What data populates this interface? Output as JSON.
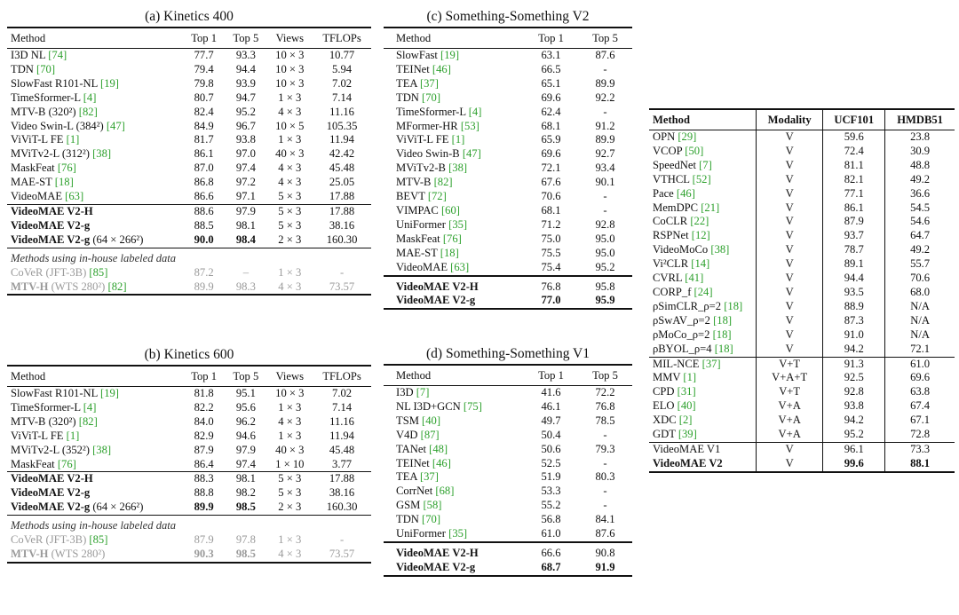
{
  "k400": {
    "caption": "(a) Kinetics 400",
    "headers": [
      "Method",
      "Top 1",
      "Top 5",
      "Views",
      "TFLOPs"
    ],
    "rows": [
      {
        "name": "I3D NL ",
        "cite": "[74]",
        "suffix": "",
        "t1": "77.7",
        "t5": "93.3",
        "views": "10 × 3",
        "tflops": "10.77"
      },
      {
        "name": "TDN ",
        "cite": "[70]",
        "suffix": "",
        "t1": "79.4",
        "t5": "94.4",
        "views": "10 × 3",
        "tflops": "5.94"
      },
      {
        "name": "SlowFast R101-NL ",
        "cite": "[19]",
        "suffix": "",
        "t1": "79.8",
        "t5": "93.9",
        "views": "10 × 3",
        "tflops": "7.02"
      },
      {
        "name": "TimeSformer-L ",
        "cite": "[4]",
        "suffix": "",
        "t1": "80.7",
        "t5": "94.7",
        "views": "1 × 3",
        "tflops": "7.14"
      },
      {
        "name": "MTV-B (320²) ",
        "cite": "[82]",
        "suffix": "",
        "t1": "82.4",
        "t5": "95.2",
        "views": "4 × 3",
        "tflops": "11.16"
      },
      {
        "name": "Video Swin-L (384²) ",
        "cite": "[47]",
        "suffix": "",
        "t1": "84.9",
        "t5": "96.7",
        "views": "10 × 5",
        "tflops": "105.35"
      },
      {
        "name": "ViViT-L FE ",
        "cite": "[1]",
        "suffix": "",
        "t1": "81.7",
        "t5": "93.8",
        "views": "1 × 3",
        "tflops": "11.94"
      },
      {
        "name": "MViTv2-L (312²) ",
        "cite": "[38]",
        "suffix": "",
        "t1": "86.1",
        "t5": "97.0",
        "views": "40 × 3",
        "tflops": "42.42"
      },
      {
        "name": "MaskFeat ",
        "cite": "[76]",
        "suffix": "",
        "t1": "87.0",
        "t5": "97.4",
        "views": "4 × 3",
        "tflops": "45.48"
      },
      {
        "name": "MAE-ST ",
        "cite": "[18]",
        "suffix": "",
        "t1": "86.8",
        "t5": "97.2",
        "views": "4 × 3",
        "tflops": "25.05"
      },
      {
        "name": "VideoMAE ",
        "cite": "[63]",
        "suffix": "",
        "t1": "86.6",
        "t5": "97.1",
        "views": "5 × 3",
        "tflops": "17.88"
      }
    ],
    "ours": [
      {
        "name": "VideoMAE V2-H",
        "suffix": "",
        "t1": "88.6",
        "t5": "97.9",
        "views": "5 × 3",
        "tflops": "17.88"
      },
      {
        "name": "VideoMAE V2-g",
        "suffix": "",
        "t1": "88.5",
        "t5": "98.1",
        "views": "5 × 3",
        "tflops": "38.16"
      },
      {
        "name": "VideoMAE V2-g",
        "suffix": " (64 × 266²)",
        "t1": "90.0",
        "t5": "98.4",
        "views": "2 × 3",
        "tflops": "160.30"
      }
    ],
    "inhouse_label": "Methods using in-house labeled data",
    "inhouse": [
      {
        "name": "CoVeR",
        "suffix": " (JFT-3B) ",
        "cite": "[85]",
        "t1": "87.2",
        "t5": "–",
        "views": "1 × 3",
        "tflops": "-"
      },
      {
        "name": "MTV-H",
        "suffix": " (WTS 280²) ",
        "cite": "[82]",
        "t1": "89.9",
        "t5": "98.3",
        "views": "4 × 3",
        "tflops": "73.57"
      }
    ]
  },
  "k600": {
    "caption": "(b) Kinetics 600",
    "headers": [
      "Method",
      "Top 1",
      "Top 5",
      "Views",
      "TFLOPs"
    ],
    "rows": [
      {
        "name": "SlowFast R101-NL ",
        "cite": "[19]",
        "t1": "81.8",
        "t5": "95.1",
        "views": "10 × 3",
        "tflops": "7.02"
      },
      {
        "name": "TimeSformer-L ",
        "cite": "[4]",
        "t1": "82.2",
        "t5": "95.6",
        "views": "1 × 3",
        "tflops": "7.14"
      },
      {
        "name": "MTV-B (320²) ",
        "cite": "[82]",
        "t1": "84.0",
        "t5": "96.2",
        "views": "4 × 3",
        "tflops": "11.16"
      },
      {
        "name": "ViViT-L FE ",
        "cite": "[1]",
        "t1": "82.9",
        "t5": "94.6",
        "views": "1 × 3",
        "tflops": "11.94"
      },
      {
        "name": "MViTv2-L (352²) ",
        "cite": "[38]",
        "t1": "87.9",
        "t5": "97.9",
        "views": "40 × 3",
        "tflops": "45.48"
      },
      {
        "name": "MaskFeat ",
        "cite": "[76]",
        "t1": "86.4",
        "t5": "97.4",
        "views": "1 × 10",
        "tflops": "3.77"
      }
    ],
    "ours": [
      {
        "name": "VideoMAE V2-H",
        "suffix": "",
        "t1": "88.3",
        "t5": "98.1",
        "views": "5 × 3",
        "tflops": "17.88"
      },
      {
        "name": "VideoMAE V2-g",
        "suffix": "",
        "t1": "88.8",
        "t5": "98.2",
        "views": "5 × 3",
        "tflops": "38.16"
      },
      {
        "name": "VideoMAE V2-g",
        "suffix": " (64 × 266²)",
        "t1": "89.9",
        "t5": "98.5",
        "views": "2 × 3",
        "tflops": "160.30"
      }
    ],
    "inhouse_label": "Methods using in-house labeled data",
    "inhouse": [
      {
        "name": "CoVeR",
        "suffix": " (JFT-3B) ",
        "cite": "[85]",
        "t1": "87.9",
        "t5": "97.8",
        "views": "1 × 3",
        "tflops": "-"
      },
      {
        "name": "MTV-H",
        "suffix": " (WTS 280²)",
        "cite": "",
        "t1": "90.3",
        "t5": "98.5",
        "views": "4 × 3",
        "tflops": "73.57"
      }
    ]
  },
  "ssv2": {
    "caption": "(c) Something-Something V2",
    "headers": [
      "Method",
      "Top 1",
      "Top 5"
    ],
    "rows": [
      {
        "name": "SlowFast ",
        "cite": "[19]",
        "t1": "63.1",
        "t5": "87.6"
      },
      {
        "name": "TEINet ",
        "cite": "[46]",
        "t1": "66.5",
        "t5": "-"
      },
      {
        "name": "TEA ",
        "cite": "[37]",
        "t1": "65.1",
        "t5": "89.9"
      },
      {
        "name": "TDN ",
        "cite": "[70]",
        "t1": "69.6",
        "t5": "92.2"
      },
      {
        "name": "TimeSformer-L ",
        "cite": "[4]",
        "t1": "62.4",
        "t5": "-"
      },
      {
        "name": "MFormer-HR ",
        "cite": "[53]",
        "t1": "68.1",
        "t5": "91.2"
      },
      {
        "name": "ViViT-L FE ",
        "cite": "[1]",
        "t1": "65.9",
        "t5": "89.9"
      },
      {
        "name": "Video Swin-B ",
        "cite": "[47]",
        "t1": "69.6",
        "t5": "92.7"
      },
      {
        "name": "MViTv2-B ",
        "cite": "[38]",
        "t1": "72.1",
        "t5": "93.4"
      },
      {
        "name": "MTV-B ",
        "cite": "[82]",
        "t1": "67.6",
        "t5": "90.1"
      },
      {
        "name": "BEVT ",
        "cite": "[72]",
        "t1": "70.6",
        "t5": "-"
      },
      {
        "name": "VIMPAC ",
        "cite": "[60]",
        "t1": "68.1",
        "t5": "-"
      },
      {
        "name": "UniFormer ",
        "cite": "[35]",
        "t1": "71.2",
        "t5": "92.8"
      },
      {
        "name": "MaskFeat ",
        "cite": "[76]",
        "t1": "75.0",
        "t5": "95.0"
      },
      {
        "name": "MAE-ST ",
        "cite": "[18]",
        "t1": "75.5",
        "t5": "95.0"
      },
      {
        "name": "VideoMAE ",
        "cite": "[63]",
        "t1": "75.4",
        "t5": "95.2"
      }
    ],
    "ours": [
      {
        "name": "VideoMAE V2-H",
        "t1": "76.8",
        "t5": "95.8"
      },
      {
        "name": "VideoMAE V2-g",
        "t1": "77.0",
        "t5": "95.9"
      }
    ]
  },
  "ssv1": {
    "caption": "(d) Something-Something V1",
    "headers": [
      "Method",
      "Top 1",
      "Top 5"
    ],
    "rows": [
      {
        "name": "I3D ",
        "cite": "[7]",
        "t1": "41.6",
        "t5": "72.2"
      },
      {
        "name": "NL I3D+GCN ",
        "cite": "[75]",
        "t1": "46.1",
        "t5": "76.8"
      },
      {
        "name": "TSM ",
        "cite": "[40]",
        "t1": "49.7",
        "t5": "78.5"
      },
      {
        "name": "V4D ",
        "cite": "[87]",
        "t1": "50.4",
        "t5": "-"
      },
      {
        "name": "TANet ",
        "cite": "[48]",
        "t1": "50.6",
        "t5": "79.3"
      },
      {
        "name": "TEINet ",
        "cite": "[46]",
        "t1": "52.5",
        "t5": "-"
      },
      {
        "name": "TEA ",
        "cite": "[37]",
        "t1": "51.9",
        "t5": "80.3"
      },
      {
        "name": "CorrNet ",
        "cite": "[68]",
        "t1": "53.3",
        "t5": "-"
      },
      {
        "name": "GSM ",
        "cite": "[58]",
        "t1": "55.2",
        "t5": "-"
      },
      {
        "name": "TDN ",
        "cite": "[70]",
        "t1": "56.8",
        "t5": "84.1"
      },
      {
        "name": "UniFormer ",
        "cite": "[35]",
        "t1": "61.0",
        "t5": "87.6"
      }
    ],
    "ours": [
      {
        "name": "VideoMAE V2-H",
        "t1": "66.6",
        "t5": "90.8"
      },
      {
        "name": "VideoMAE V2-g",
        "t1": "68.7",
        "t5": "91.9"
      }
    ]
  },
  "ucf": {
    "headers": [
      "Method",
      "Modality",
      "UCF101",
      "HMDB51"
    ],
    "group1": [
      {
        "name": "OPN ",
        "cite": "[29]",
        "mod": "V",
        "ucf": "59.6",
        "hmdb": "23.8"
      },
      {
        "name": "VCOP ",
        "cite": "[50]",
        "mod": "V",
        "ucf": "72.4",
        "hmdb": "30.9"
      },
      {
        "name": "SpeedNet ",
        "cite": "[7]",
        "mod": "V",
        "ucf": "81.1",
        "hmdb": "48.8"
      },
      {
        "name": "VTHCL ",
        "cite": "[52]",
        "mod": "V",
        "ucf": "82.1",
        "hmdb": "49.2"
      },
      {
        "name": "Pace ",
        "cite": "[46]",
        "mod": "V",
        "ucf": "77.1",
        "hmdb": "36.6"
      },
      {
        "name": "MemDPC ",
        "cite": "[21]",
        "mod": "V",
        "ucf": "86.1",
        "hmdb": "54.5"
      },
      {
        "name": "CoCLR ",
        "cite": "[22]",
        "mod": "V",
        "ucf": "87.9",
        "hmdb": "54.6"
      },
      {
        "name": "RSPNet ",
        "cite": "[12]",
        "mod": "V",
        "ucf": "93.7",
        "hmdb": "64.7"
      },
      {
        "name": "VideoMoCo ",
        "cite": "[38]",
        "mod": "V",
        "ucf": "78.7",
        "hmdb": "49.2"
      },
      {
        "name": "Vi²CLR ",
        "cite": "[14]",
        "mod": "V",
        "ucf": "89.1",
        "hmdb": "55.7"
      },
      {
        "name": "CVRL ",
        "cite": "[41]",
        "mod": "V",
        "ucf": "94.4",
        "hmdb": "70.6"
      },
      {
        "name": "CORP_f ",
        "cite": "[24]",
        "mod": "V",
        "ucf": "93.5",
        "hmdb": "68.0"
      },
      {
        "name": "ρSimCLR_ρ=2 ",
        "cite": "[18]",
        "mod": "V",
        "ucf": "88.9",
        "hmdb": "N/A"
      },
      {
        "name": "ρSwAV_ρ=2 ",
        "cite": "[18]",
        "mod": "V",
        "ucf": "87.3",
        "hmdb": "N/A"
      },
      {
        "name": "ρMoCo_ρ=2 ",
        "cite": "[18]",
        "mod": "V",
        "ucf": "91.0",
        "hmdb": "N/A"
      },
      {
        "name": "ρBYOL_ρ=4 ",
        "cite": "[18]",
        "mod": "V",
        "ucf": "94.2",
        "hmdb": "72.1"
      }
    ],
    "group2": [
      {
        "name": "MIL-NCE ",
        "cite": "[37]",
        "mod": "V+T",
        "ucf": "91.3",
        "hmdb": "61.0"
      },
      {
        "name": "MMV ",
        "cite": "[1]",
        "mod": "V+A+T",
        "ucf": "92.5",
        "hmdb": "69.6"
      },
      {
        "name": "CPD ",
        "cite": "[31]",
        "mod": "V+T",
        "ucf": "92.8",
        "hmdb": "63.8"
      },
      {
        "name": "ELO ",
        "cite": "[40]",
        "mod": "V+A",
        "ucf": "93.8",
        "hmdb": "67.4"
      },
      {
        "name": "XDC ",
        "cite": "[2]",
        "mod": "V+A",
        "ucf": "94.2",
        "hmdb": "67.1"
      },
      {
        "name": "GDT ",
        "cite": "[39]",
        "mod": "V+A",
        "ucf": "95.2",
        "hmdb": "72.8"
      }
    ],
    "group3": [
      {
        "name": "VideoMAE V1",
        "mod": "V",
        "ucf": "96.1",
        "hmdb": "73.3",
        "bold": false
      },
      {
        "name": "VideoMAE V2",
        "mod": "V",
        "ucf": "99.6",
        "hmdb": "88.1",
        "bold": true
      }
    ]
  }
}
